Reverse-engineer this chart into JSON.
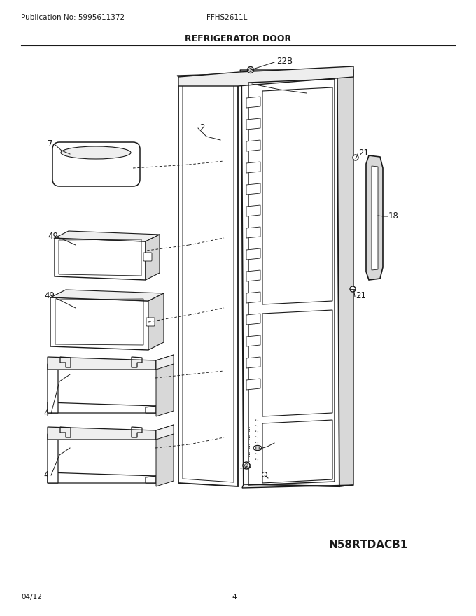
{
  "publication_no": "Publication No: 5995611372",
  "model": "FFHS2611L",
  "title": "REFRIGERATOR DOOR",
  "date": "04/12",
  "page": "4",
  "part_id": "N58RTDACB1",
  "bg_color": "#ffffff",
  "line_color": "#1a1a1a",
  "text_color": "#1a1a1a",
  "gray_fill": "#d8d8d8",
  "light_gray": "#eeeeee"
}
